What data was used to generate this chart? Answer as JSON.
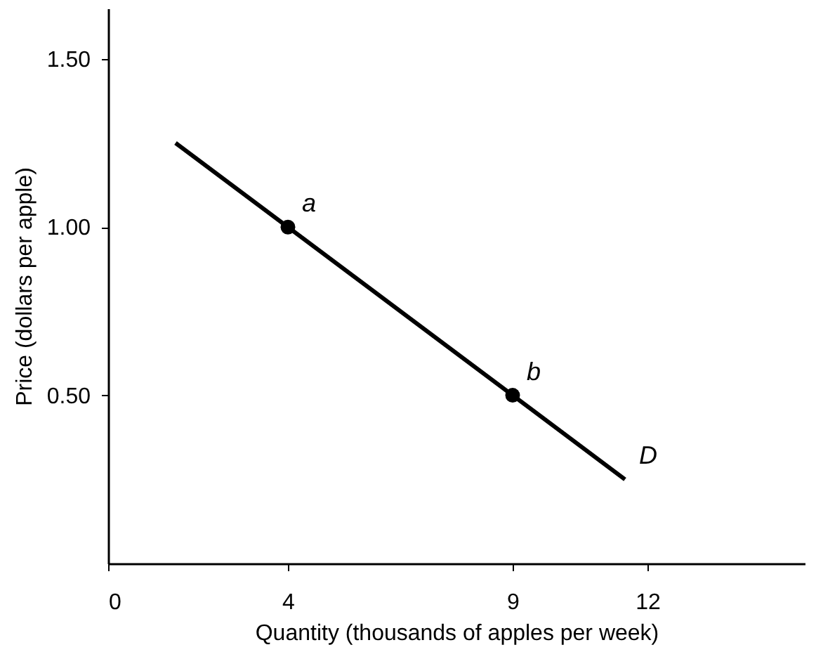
{
  "chart_data": {
    "type": "line",
    "xlabel": "Quantity (thousands of apples per week)",
    "ylabel": "Price (dollars per apple)",
    "xlim": [
      0,
      15.5
    ],
    "ylim": [
      0,
      1.65
    ],
    "xticks": [
      0,
      4,
      9,
      12
    ],
    "yticks": [
      {
        "value": 0.5,
        "label": "0.50"
      },
      {
        "value": 1,
        "label": "1.00"
      },
      {
        "value": 1.5,
        "label": "1.50"
      }
    ],
    "series": [
      {
        "x": [
          1.5,
          11.5
        ],
        "values": [
          1.25,
          0.25
        ],
        "color": "#000000",
        "marker": "none",
        "line_style": "solid"
      },
      {
        "type": "scatter",
        "x": [
          4,
          9
        ],
        "values": [
          1.0,
          0.5
        ],
        "color": "#000000",
        "marker": "circle"
      }
    ],
    "annotations": [
      {
        "text": "a",
        "x": 4,
        "y": 1.0
      },
      {
        "text": "b",
        "x": 9,
        "y": 0.5
      },
      {
        "text": "D",
        "x": 11.5,
        "y": 0.25
      }
    ],
    "grid": false
  }
}
